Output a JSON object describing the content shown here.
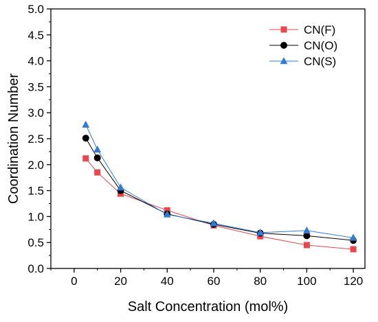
{
  "chart_data": {
    "type": "line",
    "title": "",
    "xlabel": "Salt Concentration (mol%)",
    "ylabel": "Coordination Number",
    "xlim": [
      -10,
      125
    ],
    "ylim": [
      0.0,
      5.0
    ],
    "xticks": [
      0,
      20,
      40,
      60,
      80,
      100,
      120
    ],
    "xtick_labels": [
      "0",
      "20",
      "40",
      "60",
      "80",
      "100",
      "120"
    ],
    "yticks": [
      0.0,
      0.5,
      1.0,
      1.5,
      2.0,
      2.5,
      3.0,
      3.5,
      4.0,
      4.5,
      5.0
    ],
    "ytick_labels": [
      "0.0",
      "0.5",
      "1.0",
      "1.5",
      "2.0",
      "2.5",
      "3.0",
      "3.5",
      "4.0",
      "4.5",
      "5.0"
    ],
    "grid": false,
    "legend_position": "top-right",
    "x": [
      5,
      10,
      20,
      40,
      60,
      80,
      100,
      120
    ],
    "series": [
      {
        "name": "CN(F)",
        "color": "#e8474b",
        "marker": "square",
        "values": [
          2.12,
          1.85,
          1.44,
          1.12,
          0.83,
          0.62,
          0.45,
          0.37
        ]
      },
      {
        "name": "CN(O)",
        "color": "#000000",
        "marker": "circle",
        "values": [
          2.51,
          2.13,
          1.5,
          1.05,
          0.85,
          0.68,
          0.63,
          0.54
        ]
      },
      {
        "name": "CN(S)",
        "color": "#2f7bd6",
        "marker": "triangle",
        "values": [
          2.77,
          2.29,
          1.56,
          1.04,
          0.87,
          0.69,
          0.73,
          0.59
        ]
      }
    ]
  }
}
